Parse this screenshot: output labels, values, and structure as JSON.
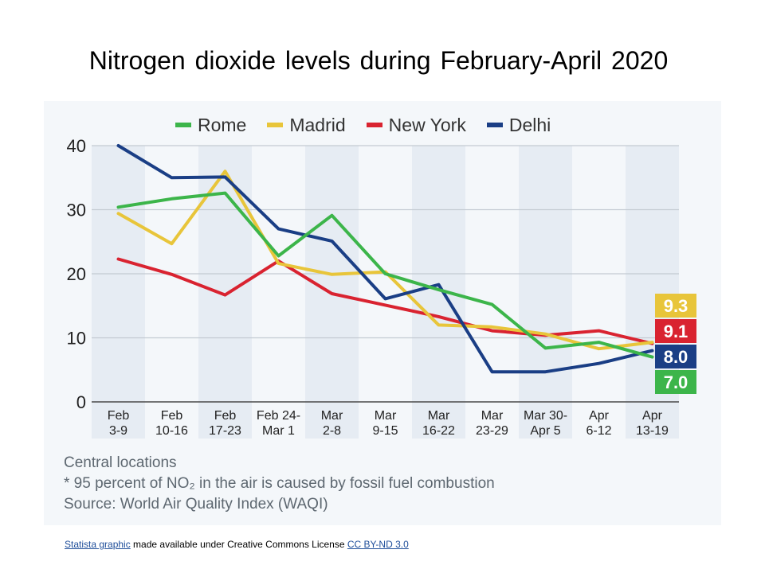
{
  "title": "Nitrogen dioxide levels during February-April 2020",
  "chart_data": {
    "type": "line",
    "categories": [
      [
        "Feb",
        "3-9"
      ],
      [
        "Feb",
        "10-16"
      ],
      [
        "Feb",
        "17-23"
      ],
      [
        "Feb 24-",
        "Mar 1"
      ],
      [
        "Mar",
        "2-8"
      ],
      [
        "Mar",
        "9-15"
      ],
      [
        "Mar",
        "16-22"
      ],
      [
        "Mar",
        "23-29"
      ],
      [
        "Mar 30-",
        "Apr 5"
      ],
      [
        "Apr",
        "6-12"
      ],
      [
        "Apr",
        "13-19"
      ]
    ],
    "ylim": [
      0,
      40
    ],
    "yticks": [
      0,
      10,
      20,
      30,
      40
    ],
    "grid": true,
    "legend_position": "top",
    "series": [
      {
        "name": "Rome",
        "color": "#3cb54a",
        "values": [
          30.4,
          31.7,
          32.6,
          22.8,
          29.1,
          20.0,
          17.5,
          15.2,
          8.4,
          9.3,
          7.0
        ],
        "end_label": "7.0"
      },
      {
        "name": "Madrid",
        "color": "#e8c53a",
        "values": [
          29.4,
          24.7,
          36.0,
          21.6,
          19.9,
          20.3,
          12.0,
          11.7,
          10.6,
          8.3,
          9.3
        ],
        "end_label": "9.3"
      },
      {
        "name": "New York",
        "color": "#d92330",
        "values": [
          22.3,
          19.9,
          16.7,
          22.0,
          16.9,
          15.1,
          13.3,
          11.1,
          10.4,
          11.1,
          9.1
        ],
        "end_label": "9.1"
      },
      {
        "name": "Delhi",
        "color": "#1a3e85",
        "values": [
          40.0,
          35.0,
          35.1,
          27.0,
          25.1,
          16.1,
          18.3,
          4.7,
          4.7,
          6.0,
          8.0
        ],
        "end_label": "8.0"
      }
    ]
  },
  "notes": {
    "line1": "Central locations",
    "line2": "* 95 percent of NO₂ in the air is caused by fossil fuel combustion",
    "line3": "Source: World Air Quality Index (WAQI)"
  },
  "license": {
    "link1": "Statista graphic",
    "middle": " made available under Creative Commons  License ",
    "link2": "CC BY-ND 3.0"
  }
}
